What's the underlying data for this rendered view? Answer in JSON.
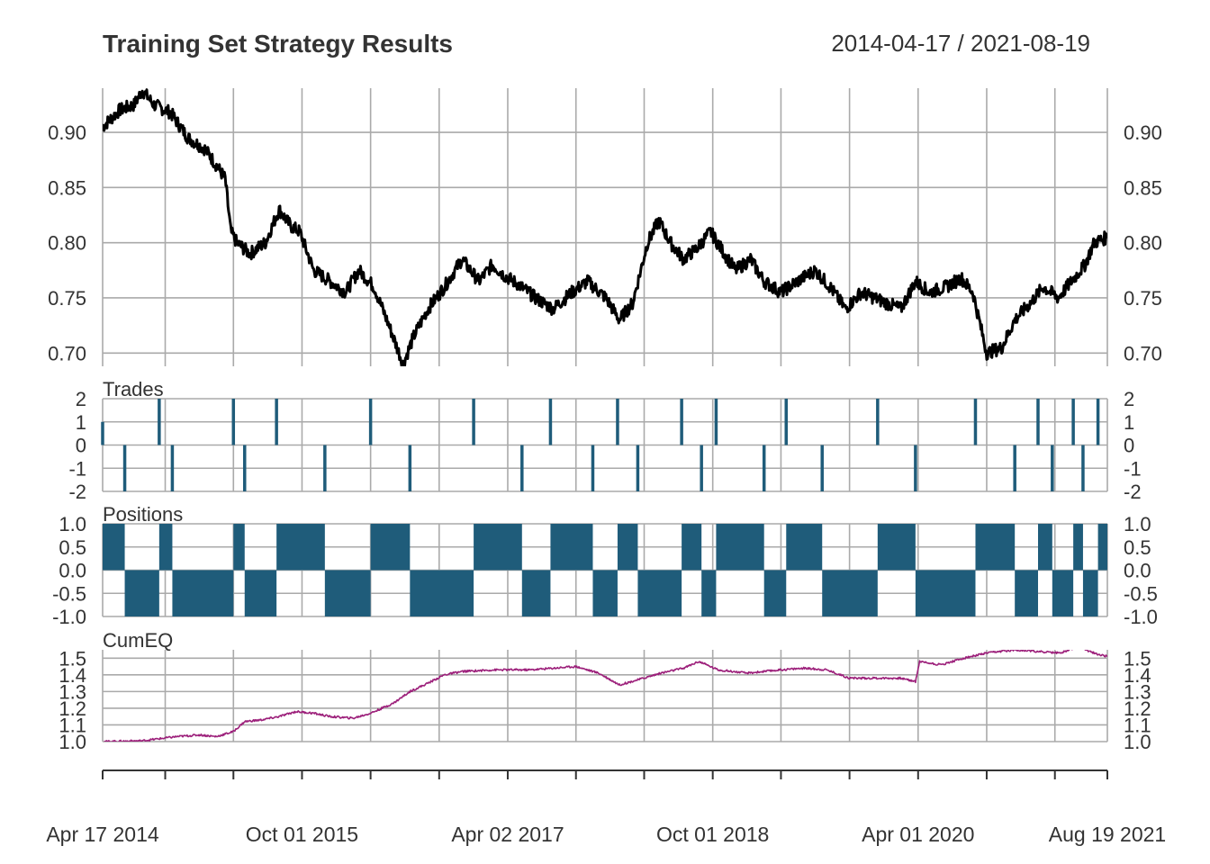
{
  "title": "Training Set Strategy Results",
  "date_range": "2014-04-17 / 2021-08-19",
  "x_labels": [
    "Apr 17 2014",
    "Oct 01 2015",
    "Apr 02 2017",
    "Oct 01 2018",
    "Apr 01 2020",
    "Aug 19 2021"
  ],
  "colors": {
    "price": "#000000",
    "trades": "#1f5c7a",
    "positions": "#1f5c7a",
    "cumeq": "#9c1f7a",
    "grid": "#aaaaaa"
  },
  "chart_data": [
    {
      "type": "line",
      "panel": "price",
      "x_range": [
        "2014-04-17",
        "2021-08-19"
      ],
      "ylim": [
        0.688,
        0.94
      ],
      "y_ticks": [
        "0.70",
        "0.75",
        "0.80",
        "0.85",
        "0.90"
      ],
      "grid": true,
      "series": [
        {
          "values": [
            [
              "2014-04-17",
              0.905
            ],
            [
              "2014-06-01",
              0.92
            ],
            [
              "2014-07-10",
              0.925
            ],
            [
              "2014-08-01",
              0.938
            ],
            [
              "2014-09-01",
              0.925
            ],
            [
              "2014-10-15",
              0.918
            ],
            [
              "2014-12-01",
              0.895
            ],
            [
              "2015-01-15",
              0.885
            ],
            [
              "2015-02-15",
              0.87
            ],
            [
              "2015-03-10",
              0.858
            ],
            [
              "2015-03-25",
              0.81
            ],
            [
              "2015-04-10",
              0.8
            ],
            [
              "2015-05-15",
              0.79
            ],
            [
              "2015-06-25",
              0.8
            ],
            [
              "2015-08-01",
              0.83
            ],
            [
              "2015-09-01",
              0.815
            ],
            [
              "2015-09-25",
              0.81
            ],
            [
              "2015-11-01",
              0.775
            ],
            [
              "2015-12-15",
              0.765
            ],
            [
              "2016-01-25",
              0.755
            ],
            [
              "2016-03-01",
              0.775
            ],
            [
              "2016-04-10",
              0.76
            ],
            [
              "2016-05-20",
              0.725
            ],
            [
              "2016-06-27",
              0.69
            ],
            [
              "2016-07-25",
              0.715
            ],
            [
              "2016-09-01",
              0.74
            ],
            [
              "2016-10-15",
              0.76
            ],
            [
              "2016-12-01",
              0.785
            ],
            [
              "2017-01-15",
              0.765
            ],
            [
              "2017-02-20",
              0.78
            ],
            [
              "2017-03-25",
              0.77
            ],
            [
              "2017-05-01",
              0.762
            ],
            [
              "2017-06-15",
              0.75
            ],
            [
              "2017-08-01",
              0.74
            ],
            [
              "2017-09-20",
              0.755
            ],
            [
              "2017-11-01",
              0.765
            ],
            [
              "2017-12-20",
              0.75
            ],
            [
              "2018-01-25",
              0.73
            ],
            [
              "2018-03-01",
              0.745
            ],
            [
              "2018-04-10",
              0.8
            ],
            [
              "2018-05-10",
              0.82
            ],
            [
              "2018-06-10",
              0.8
            ],
            [
              "2018-07-15",
              0.785
            ],
            [
              "2018-08-20",
              0.795
            ],
            [
              "2018-09-25",
              0.81
            ],
            [
              "2018-11-01",
              0.79
            ],
            [
              "2018-12-01",
              0.775
            ],
            [
              "2019-01-10",
              0.785
            ],
            [
              "2019-02-15",
              0.765
            ],
            [
              "2019-04-01",
              0.755
            ],
            [
              "2019-05-15",
              0.765
            ],
            [
              "2019-07-01",
              0.775
            ],
            [
              "2019-08-10",
              0.76
            ],
            [
              "2019-09-20",
              0.74
            ],
            [
              "2019-11-01",
              0.755
            ],
            [
              "2020-01-10",
              0.745
            ],
            [
              "2020-02-15",
              0.74
            ],
            [
              "2020-03-25",
              0.765
            ],
            [
              "2020-05-01",
              0.755
            ],
            [
              "2020-06-15",
              0.76
            ],
            [
              "2020-07-25",
              0.768
            ],
            [
              "2020-08-25",
              0.755
            ],
            [
              "2020-10-01",
              0.7
            ],
            [
              "2020-11-10",
              0.705
            ],
            [
              "2020-12-15",
              0.73
            ],
            [
              "2021-01-25",
              0.745
            ],
            [
              "2021-03-01",
              0.76
            ],
            [
              "2021-04-10",
              0.75
            ],
            [
              "2021-05-15",
              0.765
            ],
            [
              "2021-06-20",
              0.78
            ],
            [
              "2021-07-15",
              0.8
            ],
            [
              "2021-08-19",
              0.805
            ]
          ]
        }
      ]
    },
    {
      "type": "bar",
      "panel": "Trades",
      "ylim": [
        -2,
        2
      ],
      "y_ticks": [
        "-2",
        "-1",
        "0",
        "1",
        "2"
      ],
      "grid": true,
      "series": [
        {
          "name": "Trades",
          "values": [
            [
              "2014-04-17",
              1
            ],
            [
              "2014-06-15",
              -2
            ],
            [
              "2014-09-15",
              2
            ],
            [
              "2014-10-20",
              -2
            ],
            [
              "2015-04-01",
              2
            ],
            [
              "2015-05-01",
              -2
            ],
            [
              "2015-07-25",
              2
            ],
            [
              "2015-12-01",
              -2
            ],
            [
              "2016-04-01",
              2
            ],
            [
              "2016-07-15",
              -2
            ],
            [
              "2017-01-01",
              2
            ],
            [
              "2017-05-10",
              -2
            ],
            [
              "2017-07-25",
              2
            ],
            [
              "2017-11-15",
              -2
            ],
            [
              "2018-01-20",
              2
            ],
            [
              "2018-03-15",
              -2
            ],
            [
              "2018-07-10",
              2
            ],
            [
              "2018-09-01",
              -2
            ],
            [
              "2018-10-10",
              2
            ],
            [
              "2019-02-15",
              -2
            ],
            [
              "2019-04-15",
              2
            ],
            [
              "2019-07-20",
              -2
            ],
            [
              "2019-12-15",
              2
            ],
            [
              "2020-03-25",
              -2
            ],
            [
              "2020-09-01",
              2
            ],
            [
              "2020-12-15",
              -2
            ],
            [
              "2021-02-15",
              2
            ],
            [
              "2021-03-25",
              -2
            ],
            [
              "2021-05-20",
              2
            ],
            [
              "2021-06-15",
              -2
            ],
            [
              "2021-07-25",
              2
            ]
          ]
        }
      ]
    },
    {
      "type": "area",
      "panel": "Positions",
      "ylim": [
        -1,
        1
      ],
      "y_ticks": [
        "-1.0",
        "-0.5",
        "0.0",
        "0.5",
        "1.0"
      ],
      "grid": true,
      "series": [
        {
          "name": "Positions",
          "values": [
            [
              "2014-04-17",
              1
            ],
            [
              "2014-06-15",
              -1
            ],
            [
              "2014-09-15",
              1
            ],
            [
              "2014-10-20",
              -1
            ],
            [
              "2015-04-01",
              1
            ],
            [
              "2015-05-01",
              -1
            ],
            [
              "2015-07-25",
              1
            ],
            [
              "2015-12-01",
              -1
            ],
            [
              "2016-04-01",
              1
            ],
            [
              "2016-07-15",
              -1
            ],
            [
              "2017-01-01",
              1
            ],
            [
              "2017-05-10",
              -1
            ],
            [
              "2017-07-25",
              1
            ],
            [
              "2017-11-15",
              -1
            ],
            [
              "2018-01-20",
              1
            ],
            [
              "2018-03-15",
              -1
            ],
            [
              "2018-07-10",
              1
            ],
            [
              "2018-09-01",
              -1
            ],
            [
              "2018-10-10",
              1
            ],
            [
              "2019-02-15",
              -1
            ],
            [
              "2019-04-15",
              1
            ],
            [
              "2019-07-20",
              -1
            ],
            [
              "2019-12-15",
              1
            ],
            [
              "2020-03-25",
              -1
            ],
            [
              "2020-09-01",
              1
            ],
            [
              "2020-12-15",
              -1
            ],
            [
              "2021-02-15",
              1
            ],
            [
              "2021-03-25",
              -1
            ],
            [
              "2021-05-20",
              1
            ],
            [
              "2021-06-15",
              -1
            ],
            [
              "2021-07-25",
              1
            ],
            [
              "2021-08-19",
              1
            ]
          ]
        }
      ]
    },
    {
      "type": "line",
      "panel": "CumEQ",
      "ylim": [
        1.0,
        1.55
      ],
      "y_ticks": [
        "1.0",
        "1.1",
        "1.2",
        "1.3",
        "1.4",
        "1.5"
      ],
      "grid": true,
      "series": [
        {
          "name": "CumEQ",
          "values": [
            [
              "2014-04-17",
              1.0
            ],
            [
              "2014-08-01",
              1.005
            ],
            [
              "2014-11-01",
              1.03
            ],
            [
              "2015-01-01",
              1.04
            ],
            [
              "2015-02-15",
              1.03
            ],
            [
              "2015-04-01",
              1.06
            ],
            [
              "2015-05-01",
              1.12
            ],
            [
              "2015-06-15",
              1.13
            ],
            [
              "2015-08-01",
              1.15
            ],
            [
              "2015-09-15",
              1.18
            ],
            [
              "2015-11-01",
              1.17
            ],
            [
              "2015-12-15",
              1.15
            ],
            [
              "2016-02-15",
              1.14
            ],
            [
              "2016-04-01",
              1.17
            ],
            [
              "2016-06-01",
              1.23
            ],
            [
              "2016-07-15",
              1.3
            ],
            [
              "2016-09-01",
              1.35
            ],
            [
              "2016-10-15",
              1.4
            ],
            [
              "2016-12-01",
              1.42
            ],
            [
              "2017-03-01",
              1.43
            ],
            [
              "2017-06-01",
              1.43
            ],
            [
              "2017-08-01",
              1.44
            ],
            [
              "2017-10-01",
              1.45
            ],
            [
              "2017-12-01",
              1.41
            ],
            [
              "2018-01-25",
              1.34
            ],
            [
              "2018-03-15",
              1.37
            ],
            [
              "2018-05-15",
              1.41
            ],
            [
              "2018-07-15",
              1.44
            ],
            [
              "2018-08-25",
              1.48
            ],
            [
              "2018-10-15",
              1.43
            ],
            [
              "2019-01-01",
              1.41
            ],
            [
              "2019-04-01",
              1.43
            ],
            [
              "2019-06-01",
              1.44
            ],
            [
              "2019-08-01",
              1.43
            ],
            [
              "2019-10-01",
              1.38
            ],
            [
              "2019-12-15",
              1.38
            ],
            [
              "2020-02-15",
              1.38
            ],
            [
              "2020-03-25",
              1.36
            ],
            [
              "2020-04-05",
              1.48
            ],
            [
              "2020-06-01",
              1.46
            ],
            [
              "2020-08-01",
              1.5
            ],
            [
              "2020-10-01",
              1.53
            ],
            [
              "2020-12-15",
              1.55
            ],
            [
              "2021-02-15",
              1.54
            ],
            [
              "2021-04-15",
              1.53
            ],
            [
              "2021-06-01",
              1.57
            ],
            [
              "2021-07-15",
              1.53
            ],
            [
              "2021-08-19",
              1.51
            ]
          ]
        }
      ]
    }
  ]
}
